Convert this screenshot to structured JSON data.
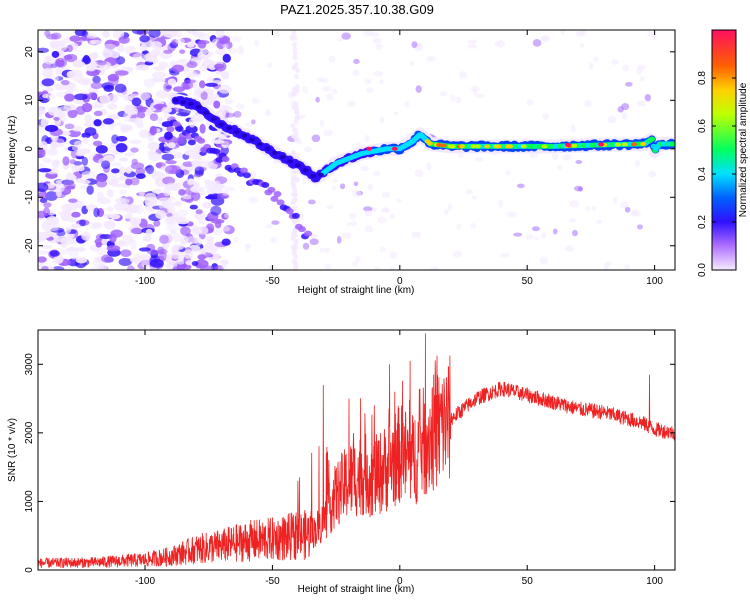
{
  "title": "PAZ1.2025.357.10.38.G09",
  "chart_data": [
    {
      "type": "heatmap",
      "name": "spectrogram",
      "xlabel": "Height of straight line (km)",
      "ylabel": "Frequency (Hz)",
      "xlim": [
        -142,
        108
      ],
      "ylim": [
        -25,
        24.5
      ],
      "xticks": [
        -100,
        -50,
        0,
        50,
        100
      ],
      "yticks": [
        -20,
        -10,
        0,
        10,
        20
      ],
      "xtick_labels": [
        "-100",
        "-50",
        "0",
        "50",
        "100"
      ],
      "ytick_labels": [
        "-20",
        "-10",
        "0",
        "10",
        "20"
      ],
      "colorbar": {
        "label": "Normalized spectral amplitude",
        "range": [
          0,
          1
        ],
        "ticks": [
          0.0,
          0.2,
          0.4,
          0.6,
          0.8
        ],
        "tick_labels": [
          "0.0",
          "0.2",
          "0.4",
          "0.6",
          "0.8"
        ],
        "colors": [
          "#f4e8ff",
          "#a060ff",
          "#3010ff",
          "#0040ff",
          "#00e0ff",
          "#00ff50",
          "#c0ff00",
          "#ffd000",
          "#ff6000",
          "#ff1060"
        ]
      },
      "ridge_main": [
        [
          -88,
          10
        ],
        [
          -80,
          9
        ],
        [
          -70,
          5
        ],
        [
          -60,
          2.5
        ],
        [
          -52,
          0
        ],
        [
          -45,
          -2
        ],
        [
          -38,
          -4
        ],
        [
          -33,
          -6
        ],
        [
          -30,
          -5
        ],
        [
          -25,
          -3
        ],
        [
          -20,
          -2
        ],
        [
          -15,
          -1
        ],
        [
          -10,
          -0.5
        ],
        [
          -5,
          0
        ],
        [
          0,
          0
        ],
        [
          5,
          1.5
        ],
        [
          8,
          3
        ],
        [
          12,
          1
        ],
        [
          20,
          0.5
        ],
        [
          40,
          0.5
        ],
        [
          60,
          0.5
        ],
        [
          80,
          0.8
        ],
        [
          96,
          1.0
        ],
        [
          99,
          2
        ],
        [
          100,
          -0.5
        ],
        [
          102,
          1
        ],
        [
          108,
          1
        ]
      ],
      "ridge_strong": [
        [
          10,
          1
        ],
        [
          25,
          0.5
        ],
        [
          45,
          0.5
        ],
        [
          65,
          0.8
        ],
        [
          85,
          0.8
        ],
        [
          95,
          1
        ]
      ],
      "branch_lower": [
        [
          -90,
          5
        ],
        [
          -75,
          0
        ],
        [
          -62,
          -5
        ],
        [
          -50,
          -9
        ],
        [
          -42,
          -13
        ],
        [
          -38,
          -17
        ],
        [
          -35,
          -19
        ]
      ]
    },
    {
      "type": "line",
      "name": "snr",
      "xlabel": "Height of straight line (km)",
      "ylabel": "SNR (10 * v/v)",
      "xlim": [
        -142,
        108
      ],
      "ylim": [
        0,
        3500
      ],
      "xticks": [
        -100,
        -50,
        0,
        50,
        100
      ],
      "yticks": [
        0,
        1000,
        2000,
        3000
      ],
      "xtick_labels": [
        "-100",
        "-50",
        "0",
        "50",
        "100"
      ],
      "ytick_labels": [
        "0",
        "1000",
        "2000",
        "3000"
      ],
      "color": "#ee2222",
      "envelope": [
        [
          -142,
          100
        ],
        [
          -120,
          110
        ],
        [
          -100,
          150
        ],
        [
          -90,
          200
        ],
        [
          -80,
          300
        ],
        [
          -70,
          350
        ],
        [
          -60,
          420
        ],
        [
          -50,
          450
        ],
        [
          -40,
          500
        ],
        [
          -35,
          520
        ],
        [
          -30,
          700
        ],
        [
          -25,
          1100
        ],
        [
          -20,
          1300
        ],
        [
          -15,
          1400
        ],
        [
          -10,
          1350
        ],
        [
          -5,
          1500
        ],
        [
          0,
          1700
        ],
        [
          5,
          1600
        ],
        [
          10,
          1900
        ],
        [
          20,
          2200
        ],
        [
          30,
          2500
        ],
        [
          40,
          2650
        ],
        [
          50,
          2550
        ],
        [
          60,
          2450
        ],
        [
          70,
          2350
        ],
        [
          80,
          2300
        ],
        [
          90,
          2200
        ],
        [
          95,
          2150
        ],
        [
          100,
          2050
        ],
        [
          108,
          2000
        ]
      ],
      "spikes": [
        [
          -40,
          1300
        ],
        [
          -30,
          2700
        ],
        [
          -20,
          2500
        ],
        [
          -10,
          2400
        ],
        [
          -4,
          3000
        ],
        [
          4,
          3050
        ],
        [
          10,
          3450
        ],
        [
          98,
          2850
        ]
      ]
    }
  ]
}
